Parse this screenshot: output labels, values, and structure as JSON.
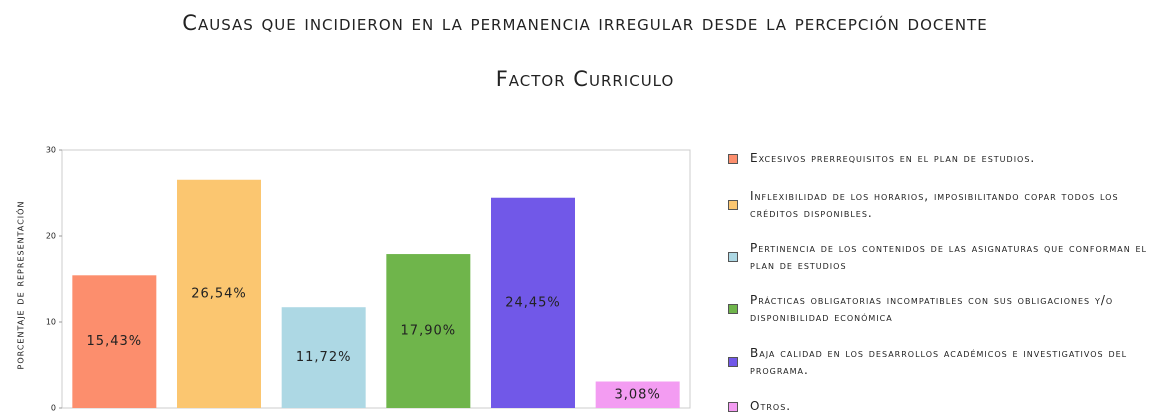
{
  "chart_data": {
    "type": "bar",
    "title": "Causas que incidieron en la permanencia irregular desde la percepción docente",
    "subtitle": "Factor Curriculo",
    "y_label": "porcentaje de representación",
    "categories": [
      "Excesivos prerrequisitos en el plan de estudios.",
      "Inflexibilidad de los horarios, imposibilitando copar todos los créditos disponibles.",
      "Pertinencia de los contenidos de las asignaturas que conforman el plan de estudios",
      "Prácticas obligatorias incompatibles con sus obligaciones y/o disponibilidad económica",
      "Baja calidad en los desarrollos académicos e investigativos del programa.",
      "Otros."
    ],
    "values": [
      15.43,
      26.54,
      11.72,
      17.9,
      24.45,
      3.08
    ],
    "value_labels": [
      "15,43%",
      "26,54%",
      "11,72%",
      "17,90%",
      "24,45%",
      "3,08%"
    ],
    "colors": [
      "#fc8e6d",
      "#fbc670",
      "#add8e4",
      "#6fb54b",
      "#7158e8",
      "#f39cf2"
    ],
    "ylim": [
      0,
      30
    ],
    "yticks": [
      0,
      10,
      20,
      30
    ],
    "grid": false,
    "legend": "right"
  }
}
